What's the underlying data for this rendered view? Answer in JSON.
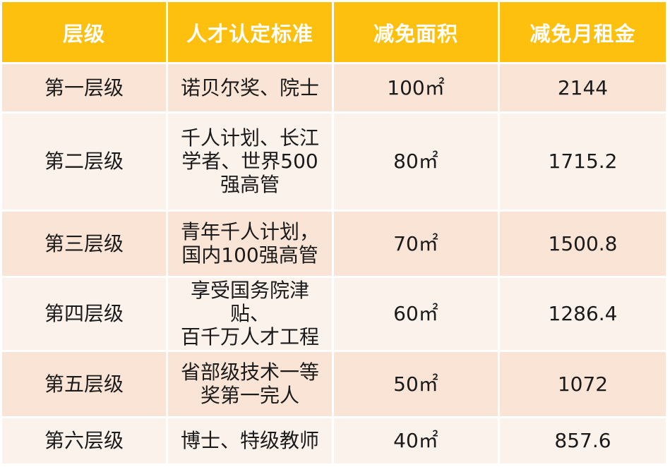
{
  "table": {
    "headers": [
      "层级",
      "人才认定标准",
      "减免面积",
      "减免月租金"
    ],
    "rows": [
      {
        "level": "第一层级",
        "criteria": [
          "诺贝尔奖、院士"
        ],
        "area": "100㎡",
        "rent": "2144"
      },
      {
        "level": "第二层级",
        "criteria": [
          "千人计划、长江",
          "学者、世界500",
          "强高管"
        ],
        "area": "80㎡",
        "rent": "1715.2"
      },
      {
        "level": "第三层级",
        "criteria": [
          "青年千人计划，",
          "国内100强高管"
        ],
        "area": "70㎡",
        "rent": "1500.8"
      },
      {
        "level": "第四层级",
        "criteria": [
          "享受国务院津贴、",
          "百千万人才工程"
        ],
        "area": "60㎡",
        "rent": "1286.4"
      },
      {
        "level": "第五层级",
        "criteria": [
          "省部级技术一等",
          "奖第一完人"
        ],
        "area": "50㎡",
        "rent": "1072"
      },
      {
        "level": "第六层级",
        "criteria": [
          "博士、特级教师"
        ],
        "area": "40㎡",
        "rent": "857.6"
      }
    ]
  },
  "colors": {
    "header_bg": "#FDC00F",
    "header_text": "#FFFFFF",
    "row_odd_bg": "#F9E4D5",
    "row_even_bg": "#FCF2EC",
    "cell_text": "#1A1A1A"
  }
}
